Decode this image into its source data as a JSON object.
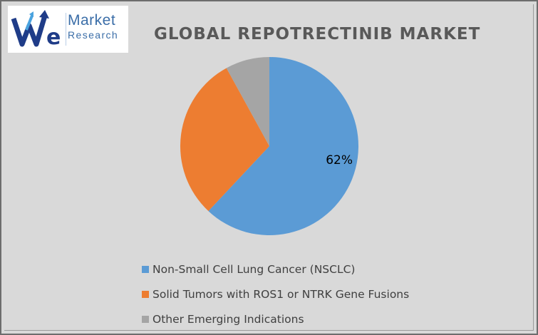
{
  "logo": {
    "brand_line1": "Market",
    "brand_line2": "Research"
  },
  "chart_data": {
    "type": "pie",
    "title": "GLOBAL REPOTRECTINIB MARKET",
    "categories": [
      "Non-Small Cell Lung Cancer (NSCLC)",
      "Solid Tumors with ROS1 or NTRK Gene Fusions",
      "Other Emerging Indications"
    ],
    "values": [
      62,
      30,
      8
    ],
    "colors": [
      "#5b9bd5",
      "#ed7d31",
      "#a5a5a5"
    ],
    "data_labels": [
      "62%",
      "",
      ""
    ],
    "legend_position": "bottom"
  }
}
